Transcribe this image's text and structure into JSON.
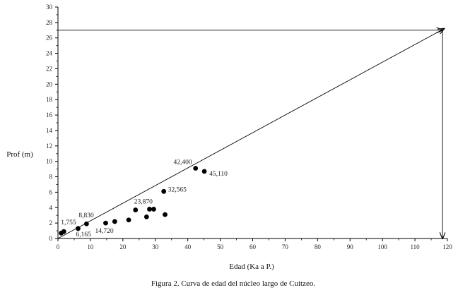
{
  "chart_data": {
    "type": "scatter",
    "title": "",
    "caption": "Figura 2. Curva de edad del núcleo largo de Cuitzeo.",
    "xlabel": "Edad (Ka a P.)",
    "ylabel": "Prof (m)",
    "xlim": [
      0,
      120
    ],
    "ylim": [
      0,
      30
    ],
    "x_ticks": [
      0,
      10,
      20,
      30,
      40,
      50,
      60,
      70,
      80,
      90,
      100,
      110,
      120
    ],
    "y_ticks": [
      0,
      2,
      4,
      6,
      8,
      10,
      12,
      14,
      16,
      18,
      20,
      22,
      24,
      26,
      28,
      30
    ],
    "grid": false,
    "points": [
      {
        "x": 1.0,
        "y": 0.7
      },
      {
        "x": 1.8,
        "y": 0.9
      },
      {
        "x": 6.2,
        "y": 1.3
      },
      {
        "x": 8.8,
        "y": 1.9
      },
      {
        "x": 14.7,
        "y": 2.0
      },
      {
        "x": 17.5,
        "y": 2.2
      },
      {
        "x": 21.8,
        "y": 2.4
      },
      {
        "x": 23.9,
        "y": 3.7
      },
      {
        "x": 27.3,
        "y": 2.8
      },
      {
        "x": 28.2,
        "y": 3.8
      },
      {
        "x": 29.5,
        "y": 3.8
      },
      {
        "x": 32.6,
        "y": 6.1
      },
      {
        "x": 33.0,
        "y": 3.1
      },
      {
        "x": 42.4,
        "y": 9.1
      },
      {
        "x": 45.1,
        "y": 8.7
      }
    ],
    "point_labels": [
      {
        "text": "1,755",
        "x": 1.8,
        "y": 0.9,
        "anchor": "start",
        "dx": -4,
        "dy": -10
      },
      {
        "text": "6,165",
        "x": 6.2,
        "y": 1.3,
        "anchor": "start",
        "dx": -3,
        "dy": 11
      },
      {
        "text": "8,830",
        "x": 8.8,
        "y": 1.9,
        "anchor": "start",
        "dx": -11,
        "dy": -9
      },
      {
        "text": "14,720",
        "x": 14.7,
        "y": 2.0,
        "anchor": "start",
        "dx": -15,
        "dy": 14
      },
      {
        "text": "23,870",
        "x": 23.9,
        "y": 3.7,
        "anchor": "start",
        "dx": -2,
        "dy": -9
      },
      {
        "text": "32,565",
        "x": 32.6,
        "y": 6.1,
        "anchor": "start",
        "dx": 6,
        "dy": 0
      },
      {
        "text": "42,400",
        "x": 42.4,
        "y": 9.1,
        "anchor": "end",
        "dx": -5,
        "dy": -6
      },
      {
        "text": "45,110",
        "x": 45.1,
        "y": 8.7,
        "anchor": "start",
        "dx": 7,
        "dy": 6
      }
    ],
    "trend_line": {
      "from": {
        "x": 0,
        "y": 0
      },
      "to": {
        "x": 119,
        "y": 27.2
      }
    },
    "reference_arrows": [
      {
        "from": {
          "x": 0,
          "y": 27.0
        },
        "to": {
          "x": 118.5,
          "y": 27.0
        }
      },
      {
        "from": {
          "x": 118.5,
          "y": 27.0
        },
        "to": {
          "x": 118.5,
          "y": 0
        }
      }
    ]
  }
}
